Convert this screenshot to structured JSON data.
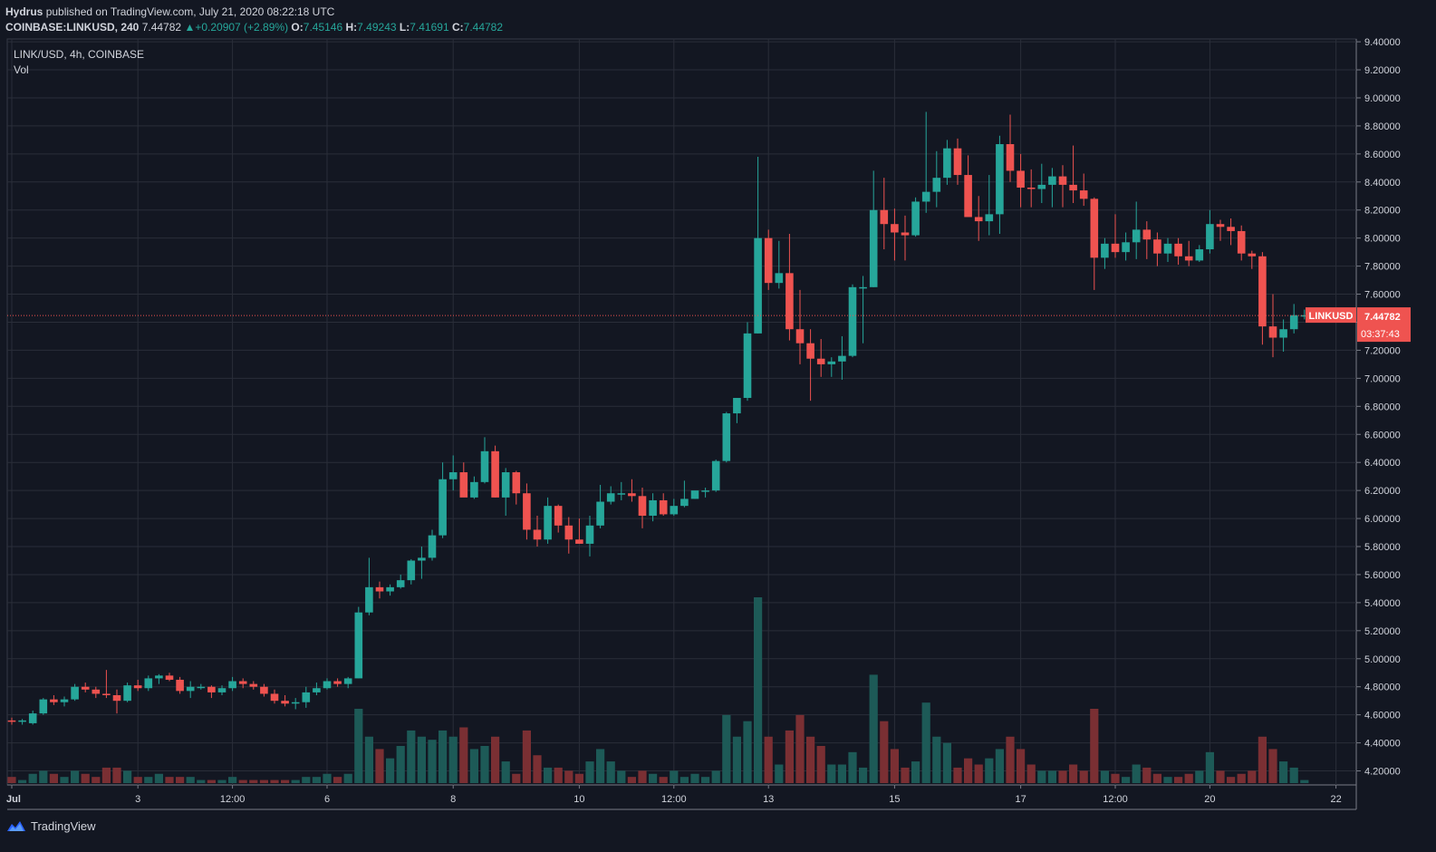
{
  "header": {
    "publisher": "Hydrus",
    "published_text": "published on TradingView.com, July 21, 2020 08:22:18 UTC",
    "symbol_line": "COINBASE:LINKUSD, 240",
    "last": "7.44782",
    "change": "+0.20907 (+2.89%)",
    "o_label": "O:",
    "o": "7.45146",
    "h_label": "H:",
    "h": "7.49243",
    "l_label": "L:",
    "l": "7.41691",
    "c_label": "C:",
    "c": "7.44782"
  },
  "legend": {
    "title": "LINK/USD, 4h, COINBASE",
    "vol": "Vol"
  },
  "price_tag": {
    "symbol": "LINKUSD",
    "price": "7.44782",
    "countdown": "03:37:43"
  },
  "footer": {
    "brand": "TradingView"
  },
  "colors": {
    "up": "#26a69a",
    "down": "#ef5350",
    "background": "#131722",
    "grid": "#2a2e39",
    "vol_up": "#1d5a57",
    "vol_down": "#7a2f33"
  },
  "chart_data": {
    "type": "candlestick",
    "y_ticks": [
      "4.20000",
      "4.40000",
      "4.60000",
      "4.80000",
      "5.00000",
      "5.20000",
      "5.40000",
      "5.60000",
      "5.80000",
      "6.00000",
      "6.20000",
      "6.40000",
      "6.60000",
      "6.80000",
      "7.00000",
      "7.20000",
      "7.40000",
      "7.60000",
      "7.80000",
      "8.00000",
      "8.20000",
      "8.40000",
      "8.60000",
      "8.80000",
      "9.00000",
      "9.20000",
      "9.40000"
    ],
    "ylim": [
      4.1,
      9.42
    ],
    "x_labels": [
      {
        "label": "Jul",
        "i": 0
      },
      {
        "label": "3",
        "i": 12
      },
      {
        "label": "12:00",
        "i": 21
      },
      {
        "label": "6",
        "i": 30
      },
      {
        "label": "8",
        "i": 42
      },
      {
        "label": "10",
        "i": 54
      },
      {
        "label": "12:00",
        "i": 63
      },
      {
        "label": "13",
        "i": 72
      },
      {
        "label": "15",
        "i": 84
      },
      {
        "label": "17",
        "i": 96
      },
      {
        "label": "12:00",
        "i": 105
      },
      {
        "label": "20",
        "i": 114
      },
      {
        "label": "22",
        "i": 126
      }
    ],
    "last_price": 7.44782,
    "candles": [
      [
        4.56,
        4.58,
        4.53,
        4.55,
        2
      ],
      [
        4.55,
        4.57,
        4.53,
        4.56,
        1
      ],
      [
        4.54,
        4.63,
        4.53,
        4.61,
        3
      ],
      [
        4.61,
        4.72,
        4.6,
        4.71,
        4
      ],
      [
        4.71,
        4.74,
        4.67,
        4.69,
        3
      ],
      [
        4.69,
        4.73,
        4.66,
        4.71,
        2
      ],
      [
        4.71,
        4.82,
        4.7,
        4.8,
        4
      ],
      [
        4.8,
        4.83,
        4.76,
        4.78,
        3
      ],
      [
        4.78,
        4.8,
        4.72,
        4.75,
        2
      ],
      [
        4.75,
        4.92,
        4.72,
        4.74,
        5
      ],
      [
        4.74,
        4.78,
        4.61,
        4.7,
        5
      ],
      [
        4.7,
        4.83,
        4.69,
        4.81,
        4
      ],
      [
        4.81,
        4.85,
        4.77,
        4.79,
        2
      ],
      [
        4.79,
        4.88,
        4.77,
        4.86,
        2
      ],
      [
        4.86,
        4.89,
        4.82,
        4.88,
        3
      ],
      [
        4.88,
        4.9,
        4.84,
        4.85,
        2
      ],
      [
        4.85,
        4.87,
        4.75,
        4.77,
        2
      ],
      [
        4.77,
        4.84,
        4.72,
        4.8,
        2
      ],
      [
        4.8,
        4.82,
        4.78,
        4.8,
        1
      ],
      [
        4.8,
        4.81,
        4.72,
        4.76,
        1
      ],
      [
        4.76,
        4.81,
        4.74,
        4.79,
        1
      ],
      [
        4.79,
        4.87,
        4.77,
        4.84,
        2
      ],
      [
        4.84,
        4.86,
        4.79,
        4.82,
        1
      ],
      [
        4.82,
        4.84,
        4.78,
        4.8,
        1
      ],
      [
        4.8,
        4.82,
        4.73,
        4.75,
        1
      ],
      [
        4.75,
        4.78,
        4.68,
        4.7,
        1
      ],
      [
        4.7,
        4.74,
        4.66,
        4.68,
        1
      ],
      [
        4.68,
        4.72,
        4.64,
        4.69,
        1
      ],
      [
        4.69,
        4.8,
        4.65,
        4.76,
        2
      ],
      [
        4.76,
        4.83,
        4.74,
        4.79,
        2
      ],
      [
        4.79,
        4.86,
        4.78,
        4.84,
        3
      ],
      [
        4.84,
        4.86,
        4.8,
        4.82,
        2
      ],
      [
        4.82,
        4.87,
        4.79,
        4.86,
        3
      ],
      [
        4.86,
        5.37,
        4.86,
        5.33,
        24
      ],
      [
        5.33,
        5.72,
        5.31,
        5.51,
        15
      ],
      [
        5.51,
        5.55,
        5.43,
        5.48,
        11
      ],
      [
        5.48,
        5.53,
        5.45,
        5.51,
        8
      ],
      [
        5.51,
        5.6,
        5.5,
        5.56,
        12
      ],
      [
        5.56,
        5.71,
        5.53,
        5.7,
        17
      ],
      [
        5.7,
        5.8,
        5.57,
        5.72,
        15
      ],
      [
        5.72,
        5.92,
        5.7,
        5.88,
        14
      ],
      [
        5.88,
        6.4,
        5.86,
        6.28,
        17
      ],
      [
        6.28,
        6.45,
        6.2,
        6.33,
        15
      ],
      [
        6.33,
        6.4,
        6.19,
        6.15,
        18
      ],
      [
        6.15,
        6.3,
        6.14,
        6.26,
        11
      ],
      [
        6.26,
        6.58,
        6.25,
        6.48,
        12
      ],
      [
        6.48,
        6.52,
        6.15,
        6.15,
        15
      ],
      [
        6.15,
        6.36,
        6.02,
        6.33,
        7
      ],
      [
        6.33,
        6.34,
        6.1,
        6.18,
        3
      ],
      [
        6.18,
        6.25,
        5.85,
        5.92,
        17
      ],
      [
        5.92,
        6.02,
        5.8,
        5.85,
        9
      ],
      [
        5.85,
        6.15,
        5.82,
        6.09,
        5
      ],
      [
        6.09,
        6.1,
        5.9,
        5.95,
        5
      ],
      [
        5.95,
        6.01,
        5.75,
        5.85,
        4
      ],
      [
        5.85,
        6.0,
        5.82,
        5.82,
        3
      ],
      [
        5.82,
        6.02,
        5.73,
        5.95,
        7
      ],
      [
        5.95,
        6.24,
        5.93,
        6.12,
        11
      ],
      [
        6.12,
        6.23,
        6.1,
        6.18,
        7
      ],
      [
        6.18,
        6.26,
        6.13,
        6.18,
        4
      ],
      [
        6.18,
        6.28,
        6.12,
        6.16,
        2
      ],
      [
        6.16,
        6.22,
        5.93,
        6.02,
        4
      ],
      [
        6.02,
        6.18,
        5.98,
        6.13,
        3
      ],
      [
        6.13,
        6.18,
        6.02,
        6.03,
        2
      ],
      [
        6.03,
        6.14,
        6.02,
        6.09,
        4
      ],
      [
        6.09,
        6.27,
        6.08,
        6.14,
        2
      ],
      [
        6.14,
        6.19,
        6.14,
        6.2,
        3
      ],
      [
        6.2,
        6.22,
        6.15,
        6.2,
        2
      ],
      [
        6.2,
        6.42,
        6.19,
        6.41,
        4
      ],
      [
        6.41,
        6.76,
        6.4,
        6.75,
        22
      ],
      [
        6.75,
        6.85,
        6.68,
        6.86,
        15
      ],
      [
        6.86,
        7.4,
        6.84,
        7.32,
        20
      ],
      [
        7.32,
        8.58,
        7.32,
        8.0,
        60
      ],
      [
        8.0,
        8.06,
        7.63,
        7.68,
        15
      ],
      [
        7.68,
        7.98,
        7.64,
        7.75,
        6
      ],
      [
        7.75,
        8.03,
        7.27,
        7.35,
        17
      ],
      [
        7.35,
        7.63,
        7.1,
        7.25,
        22
      ],
      [
        7.25,
        7.35,
        6.84,
        7.14,
        15
      ],
      [
        7.14,
        7.28,
        7.01,
        7.1,
        12
      ],
      [
        7.1,
        7.15,
        7.01,
        7.12,
        6
      ],
      [
        7.12,
        7.3,
        6.99,
        7.16,
        6
      ],
      [
        7.16,
        7.67,
        7.15,
        7.65,
        10
      ],
      [
        7.65,
        7.73,
        7.25,
        7.65,
        5
      ],
      [
        7.65,
        8.48,
        7.65,
        8.2,
        35
      ],
      [
        8.2,
        8.43,
        7.92,
        8.1,
        20
      ],
      [
        8.1,
        8.21,
        7.84,
        8.04,
        11
      ],
      [
        8.04,
        8.16,
        7.84,
        8.02,
        5
      ],
      [
        8.02,
        8.29,
        8.01,
        8.26,
        7
      ],
      [
        8.26,
        8.9,
        8.18,
        8.33,
        26
      ],
      [
        8.33,
        8.62,
        8.22,
        8.43,
        15
      ],
      [
        8.43,
        8.7,
        8.38,
        8.64,
        13
      ],
      [
        8.64,
        8.71,
        8.38,
        8.45,
        5
      ],
      [
        8.45,
        8.59,
        8.18,
        8.15,
        8
      ],
      [
        8.15,
        8.3,
        7.98,
        8.12,
        6
      ],
      [
        8.12,
        8.45,
        8.02,
        8.17,
        8
      ],
      [
        8.17,
        8.73,
        8.03,
        8.67,
        11
      ],
      [
        8.67,
        8.88,
        8.4,
        8.48,
        15
      ],
      [
        8.48,
        8.6,
        8.22,
        8.36,
        11
      ],
      [
        8.36,
        8.49,
        8.22,
        8.35,
        6
      ],
      [
        8.35,
        8.53,
        8.25,
        8.38,
        4
      ],
      [
        8.38,
        8.5,
        8.22,
        8.44,
        4
      ],
      [
        8.44,
        8.52,
        8.22,
        8.38,
        4
      ],
      [
        8.38,
        8.66,
        8.25,
        8.34,
        6
      ],
      [
        8.34,
        8.46,
        8.23,
        8.28,
        4
      ],
      [
        8.28,
        8.29,
        7.63,
        7.86,
        24
      ],
      [
        7.86,
        8.0,
        7.78,
        7.96,
        4
      ],
      [
        7.96,
        8.17,
        7.86,
        7.9,
        3
      ],
      [
        7.9,
        8.04,
        7.84,
        7.97,
        2
      ],
      [
        7.97,
        8.26,
        7.85,
        8.06,
        6
      ],
      [
        8.06,
        8.12,
        7.85,
        7.99,
        5
      ],
      [
        7.99,
        8.04,
        7.8,
        7.89,
        3
      ],
      [
        7.89,
        8.0,
        7.83,
        7.96,
        2
      ],
      [
        7.96,
        8.0,
        7.81,
        7.87,
        2
      ],
      [
        7.87,
        7.98,
        7.8,
        7.84,
        3
      ],
      [
        7.84,
        7.95,
        7.83,
        7.92,
        4
      ],
      [
        7.92,
        8.2,
        7.89,
        8.1,
        10
      ],
      [
        8.1,
        8.13,
        7.98,
        8.08,
        4
      ],
      [
        8.08,
        8.14,
        7.95,
        8.05,
        2
      ],
      [
        8.05,
        8.09,
        7.84,
        7.89,
        3
      ],
      [
        7.89,
        7.91,
        7.78,
        7.87,
        4
      ],
      [
        7.87,
        7.9,
        7.24,
        7.37,
        15
      ],
      [
        7.37,
        7.6,
        7.15,
        7.29,
        11
      ],
      [
        7.29,
        7.42,
        7.19,
        7.35,
        7
      ],
      [
        7.35,
        7.53,
        7.32,
        7.45,
        5
      ],
      [
        7.45,
        7.49,
        7.42,
        7.45,
        1
      ]
    ]
  }
}
